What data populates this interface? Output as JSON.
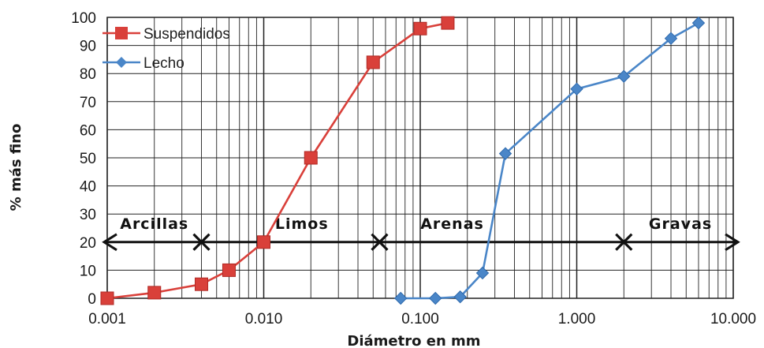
{
  "chart_data": {
    "type": "line",
    "xscale": "log",
    "xlim": [
      0.001,
      10
    ],
    "ylim": [
      0,
      100
    ],
    "grid": true,
    "xlabel": "Diámetro en mm",
    "ylabel": "% más fino",
    "x_ticks": [
      0.001,
      0.01,
      0.1,
      1,
      10
    ],
    "x_tick_labels": [
      "0.001",
      "0.010",
      "0.100",
      "1.000",
      "10.000"
    ],
    "y_ticks": [
      0,
      10,
      20,
      30,
      40,
      50,
      60,
      70,
      80,
      90,
      100
    ],
    "y_tick_labels": [
      "0",
      "10",
      "20",
      "30",
      "40",
      "50",
      "60",
      "70",
      "80",
      "90",
      "100"
    ],
    "legend_position": "top-left",
    "series": [
      {
        "name": "Suspendidos",
        "color": "#d9403a",
        "marker": "square",
        "x": [
          0.001,
          0.002,
          0.004,
          0.006,
          0.01,
          0.02,
          0.05,
          0.1,
          0.15
        ],
        "y": [
          0,
          2,
          5,
          10,
          20,
          50,
          84,
          96,
          98
        ]
      },
      {
        "name": "Lecho",
        "color": "#4a86c8",
        "marker": "diamond",
        "x": [
          0.075,
          0.125,
          0.18,
          0.25,
          0.35,
          1.0,
          2.0,
          4.0,
          6.0
        ],
        "y": [
          0,
          0,
          0.5,
          9,
          51.5,
          74.5,
          79,
          92.5,
          98
        ]
      }
    ],
    "regions": {
      "y": 20,
      "color": "#111111",
      "boundaries": [
        0.001,
        0.004,
        0.055,
        2.0,
        10.0
      ],
      "labels": [
        {
          "text": "Arcillas",
          "x": 0.002
        },
        {
          "text": "Limos",
          "x": 0.0175
        },
        {
          "text": "Arenas",
          "x": 0.16
        },
        {
          "text": "Gravas",
          "x": 4.6
        }
      ]
    }
  }
}
